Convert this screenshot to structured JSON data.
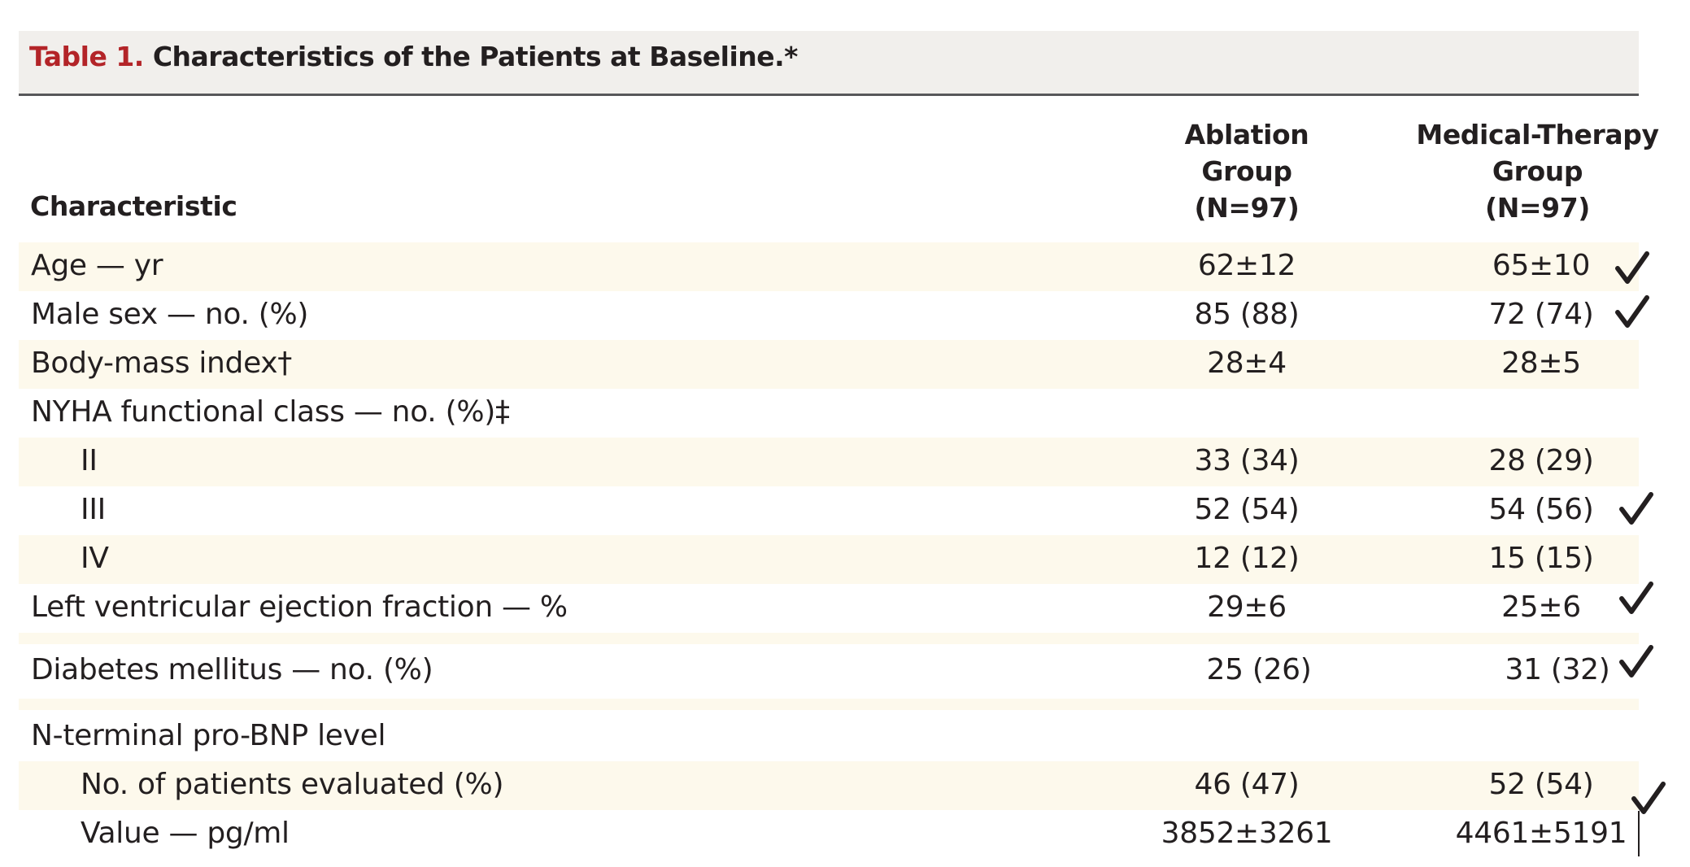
{
  "title": {
    "label": "Table 1.",
    "text": "Characteristics of the Patients at Baseline.*"
  },
  "header": {
    "characteristic": "Characteristic",
    "ablation": [
      "Ablation",
      "Group",
      "(N=97)"
    ],
    "medical": [
      "Medical-Therapy",
      "Group",
      "(N=97)"
    ]
  },
  "rows": [
    {
      "label": "Age — yr",
      "ablation": "62±12",
      "medical": "65±10",
      "checked": true
    },
    {
      "label": "Male sex — no. (%)",
      "ablation": "85 (88)",
      "medical": "72 (74)",
      "checked": true
    },
    {
      "label": "Body-mass index†",
      "ablation": "28±4",
      "medical": "28±5",
      "checked": false
    },
    {
      "label": "NYHA functional class — no. (%)‡",
      "ablation": "",
      "medical": "",
      "checked": false
    },
    {
      "label": "II",
      "ablation": "33 (34)",
      "medical": "28 (29)",
      "checked": false
    },
    {
      "label": "III",
      "ablation": "52 (54)",
      "medical": "54 (56)",
      "checked": true
    },
    {
      "label": "IV",
      "ablation": "12 (12)",
      "medical": "15 (15)",
      "checked": false
    },
    {
      "label": "Left ventricular ejection fraction — %",
      "ablation": "29±6",
      "medical": "25±6",
      "checked": true
    },
    {
      "label": "Diabetes mellitus — no. (%)",
      "ablation": "25 (26)",
      "medical": "31 (32)",
      "checked": true
    },
    {
      "label": "N-terminal pro-BNP level",
      "ablation": "",
      "medical": "",
      "checked": false
    },
    {
      "label": "No. of patients evaluated (%)",
      "ablation": "46 (47)",
      "medical": "52 (54)",
      "checked": true
    },
    {
      "label": "Value — pg/ml",
      "ablation": "3852±3261",
      "medical": "4461±5191",
      "checked": false
    }
  ],
  "colors": {
    "title_label": "#b32428",
    "text": "#231f20",
    "title_band": "#f1efec",
    "shaded_row": "#fdf9ec"
  },
  "icons": {
    "check": "check-mark-icon"
  }
}
